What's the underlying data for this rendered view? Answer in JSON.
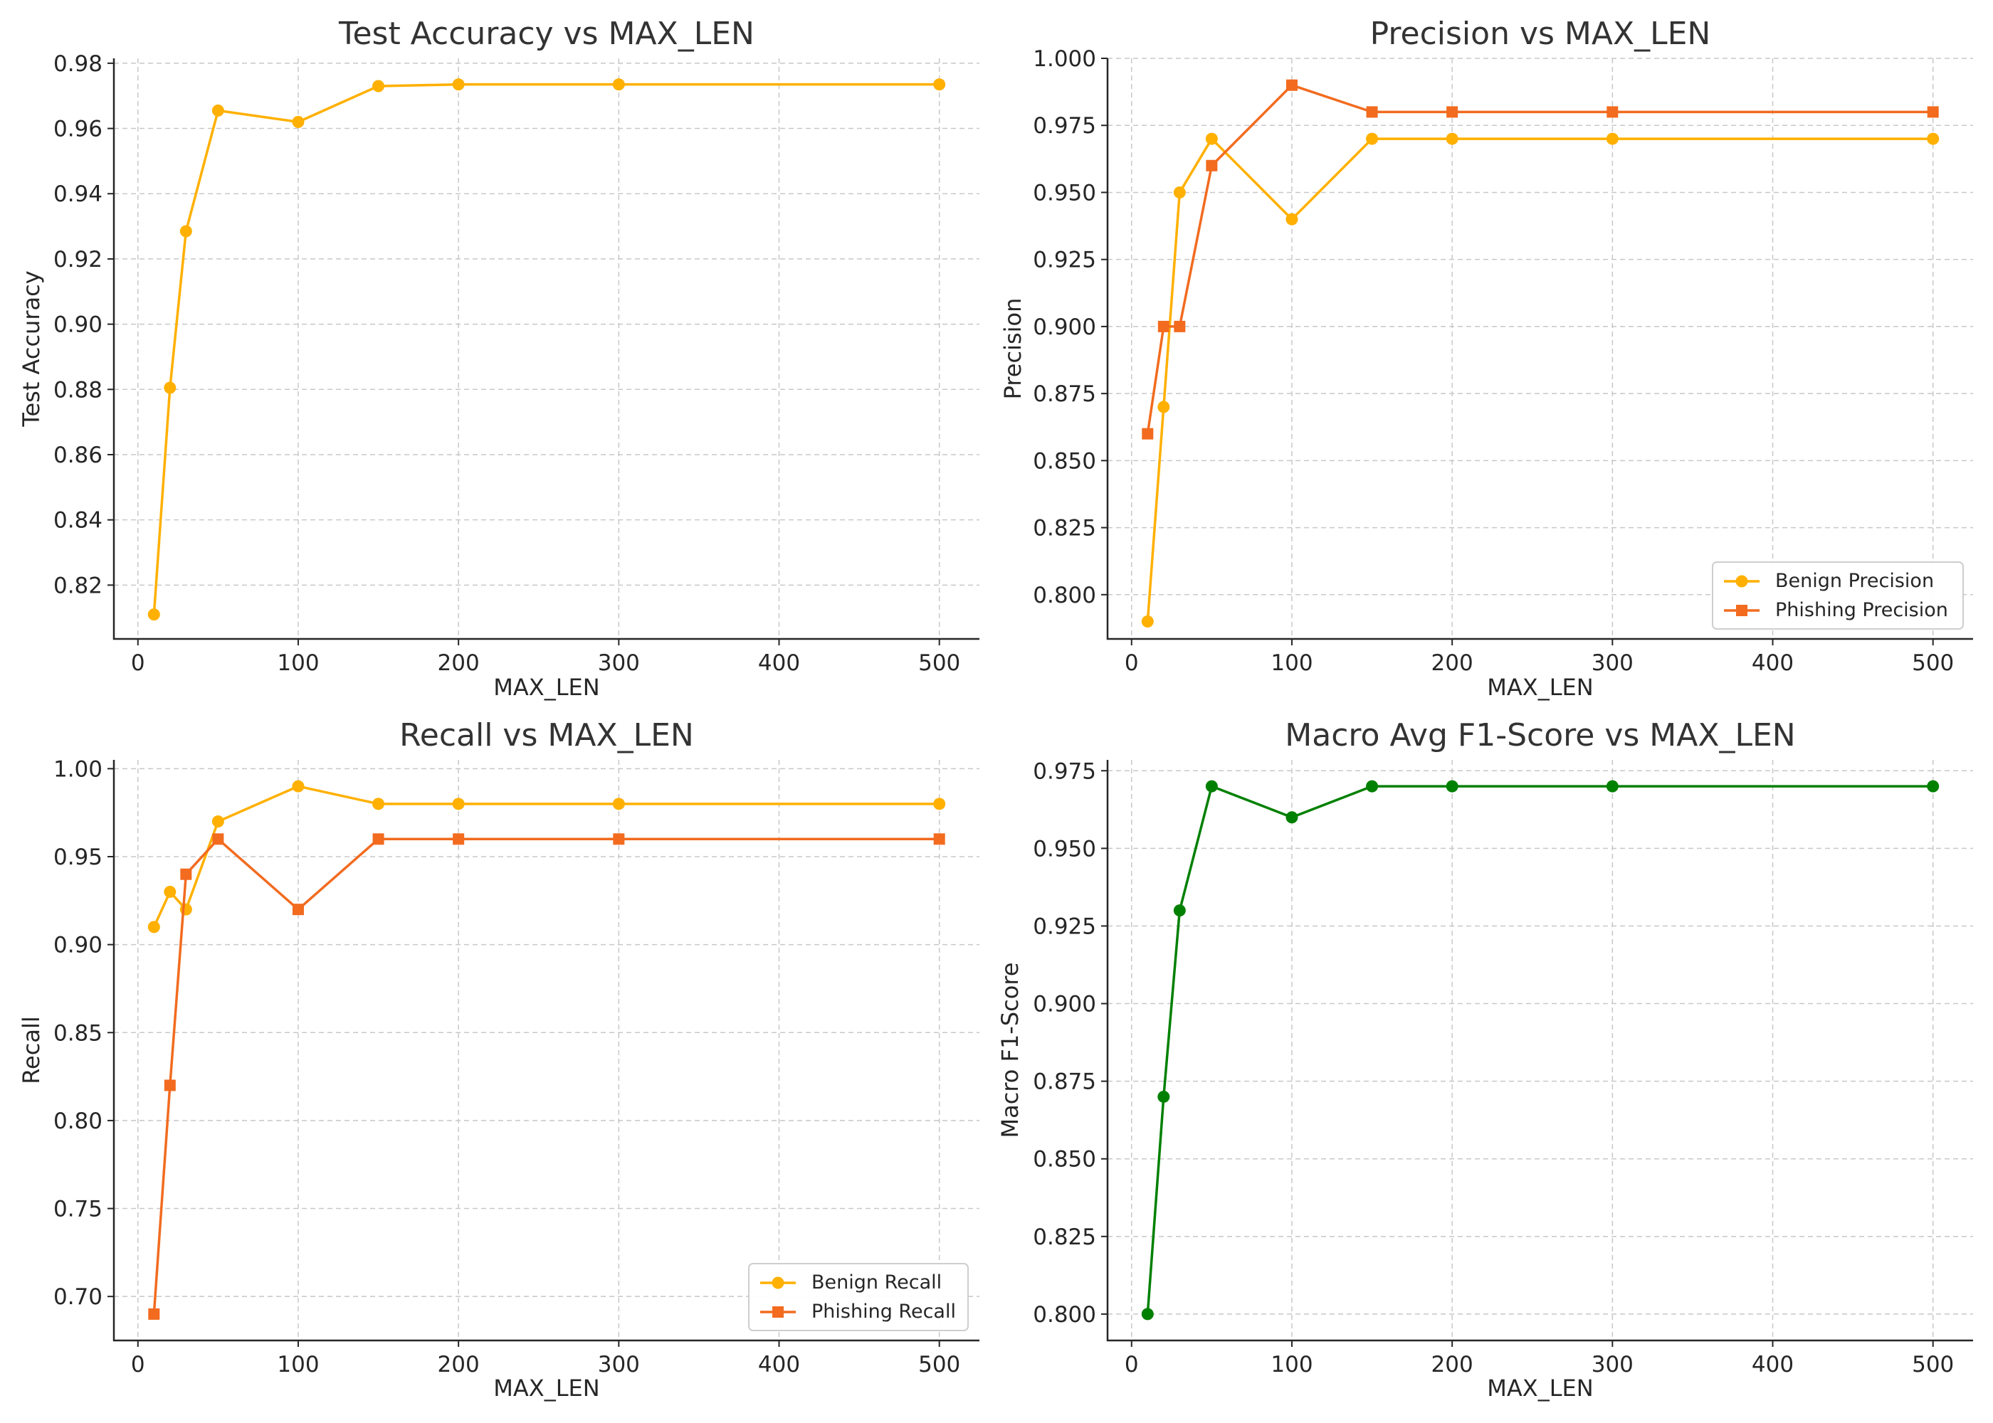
{
  "chart_data": [
    {
      "type": "line",
      "title": "Test Accuracy vs MAX_LEN",
      "xlabel": "MAX_LEN",
      "ylabel": "Test Accuracy",
      "xlim": [
        -15,
        525
      ],
      "ylim": [
        0.8035,
        0.9815
      ],
      "xticks": [
        0,
        100,
        200,
        300,
        400,
        500
      ],
      "xtick_labels": [
        "0",
        "100",
        "200",
        "300",
        "400",
        "500"
      ],
      "yticks": [
        0.82,
        0.84,
        0.86,
        0.88,
        0.9,
        0.92,
        0.94,
        0.96,
        0.98
      ],
      "ytick_labels": [
        "0.82",
        "0.84",
        "0.86",
        "0.88",
        "0.90",
        "0.92",
        "0.94",
        "0.96",
        "0.98"
      ],
      "grid": true,
      "legend": null,
      "x": [
        10,
        20,
        30,
        50,
        100,
        150,
        200,
        300,
        500
      ],
      "series": [
        {
          "values": [
            0.811,
            0.8805,
            0.9285,
            0.9655,
            0.962,
            0.973,
            0.9735,
            0.9735,
            0.9735
          ],
          "color": "#FFB000",
          "marker": "circle"
        }
      ]
    },
    {
      "type": "line",
      "title": "Precision vs MAX_LEN",
      "xlabel": "MAX_LEN",
      "ylabel": "Precision",
      "xlim": [
        -15,
        525
      ],
      "ylim": [
        0.7835,
        1.0
      ],
      "xticks": [
        0,
        100,
        200,
        300,
        400,
        500
      ],
      "xtick_labels": [
        "0",
        "100",
        "200",
        "300",
        "400",
        "500"
      ],
      "yticks": [
        0.8,
        0.825,
        0.85,
        0.875,
        0.9,
        0.925,
        0.95,
        0.975,
        1.0
      ],
      "ytick_labels": [
        "0.800",
        "0.825",
        "0.850",
        "0.875",
        "0.900",
        "0.925",
        "0.950",
        "0.975",
        "1.000"
      ],
      "grid": true,
      "legend": "bottom-right",
      "x": [
        10,
        20,
        30,
        50,
        100,
        150,
        200,
        300,
        500
      ],
      "series": [
        {
          "name": "Benign Precision",
          "values": [
            0.79,
            0.87,
            0.95,
            0.97,
            0.94,
            0.97,
            0.97,
            0.97,
            0.97
          ],
          "color": "#FFB000",
          "marker": "circle"
        },
        {
          "name": "Phishing Precision",
          "values": [
            0.86,
            0.9,
            0.9,
            0.96,
            0.99,
            0.98,
            0.98,
            0.98,
            0.98
          ],
          "color": "#F26B1F",
          "marker": "square"
        }
      ]
    },
    {
      "type": "line",
      "title": "Recall vs MAX_LEN",
      "xlabel": "MAX_LEN",
      "ylabel": "Recall",
      "xlim": [
        -15,
        525
      ],
      "ylim": [
        0.675,
        1.005
      ],
      "xticks": [
        0,
        100,
        200,
        300,
        400,
        500
      ],
      "xtick_labels": [
        "0",
        "100",
        "200",
        "300",
        "400",
        "500"
      ],
      "yticks": [
        0.7,
        0.75,
        0.8,
        0.85,
        0.9,
        0.95,
        1.0
      ],
      "ytick_labels": [
        "0.70",
        "0.75",
        "0.80",
        "0.85",
        "0.90",
        "0.95",
        "1.00"
      ],
      "grid": true,
      "legend": "bottom-right",
      "x": [
        10,
        20,
        30,
        50,
        100,
        150,
        200,
        300,
        500
      ],
      "series": [
        {
          "name": "Benign Recall",
          "values": [
            0.91,
            0.93,
            0.92,
            0.97,
            0.99,
            0.98,
            0.98,
            0.98,
            0.98
          ],
          "color": "#FFB000",
          "marker": "circle"
        },
        {
          "name": "Phishing Recall",
          "values": [
            0.69,
            0.82,
            0.94,
            0.96,
            0.92,
            0.96,
            0.96,
            0.96,
            0.96
          ],
          "color": "#F26B1F",
          "marker": "square"
        }
      ]
    },
    {
      "type": "line",
      "title": "Macro Avg F1-Score vs MAX_LEN",
      "xlabel": "MAX_LEN",
      "ylabel": "Macro F1-Score",
      "xlim": [
        -15,
        525
      ],
      "ylim": [
        0.7915,
        0.9785
      ],
      "xticks": [
        0,
        100,
        200,
        300,
        400,
        500
      ],
      "xtick_labels": [
        "0",
        "100",
        "200",
        "300",
        "400",
        "500"
      ],
      "yticks": [
        0.8,
        0.825,
        0.85,
        0.875,
        0.9,
        0.925,
        0.95,
        0.975
      ],
      "ytick_labels": [
        "0.800",
        "0.825",
        "0.850",
        "0.875",
        "0.900",
        "0.925",
        "0.950",
        "0.975"
      ],
      "grid": true,
      "legend": null,
      "x": [
        10,
        20,
        30,
        50,
        100,
        150,
        200,
        300,
        500
      ],
      "series": [
        {
          "values": [
            0.8,
            0.87,
            0.93,
            0.97,
            0.96,
            0.97,
            0.97,
            0.97,
            0.97
          ],
          "color": "#008000",
          "marker": "circle"
        }
      ]
    }
  ]
}
